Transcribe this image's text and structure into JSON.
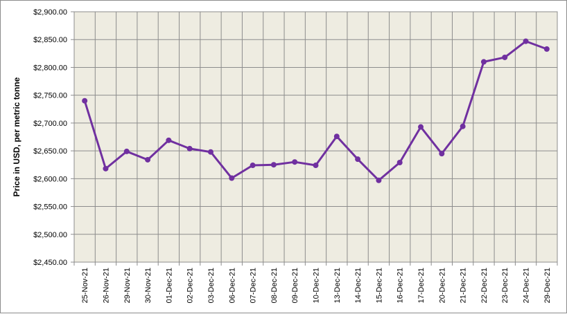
{
  "chart_data": {
    "type": "line",
    "title": "",
    "xlabel": "",
    "ylabel": "Price in USD, per metric tonne",
    "ylim": [
      2450,
      2900
    ],
    "y_tick_step": 50,
    "y_tick_labels": [
      "$2,450.00",
      "$2,500.00",
      "$2,550.00",
      "$2,600.00",
      "$2,650.00",
      "$2,700.00",
      "$2,750.00",
      "$2,800.00",
      "$2,850.00",
      "$2,900.00"
    ],
    "grid": true,
    "legend": "none",
    "categories": [
      "25-Nov-21",
      "26-Nov-21",
      "29-Nov-21",
      "30-Nov-21",
      "01-Dec-21",
      "02-Dec-21",
      "03-Dec-21",
      "06-Dec-21",
      "07-Dec-21",
      "08-Dec-21",
      "09-Dec-21",
      "10-Dec-21",
      "13-Dec-21",
      "14-Dec-21",
      "15-Dec-21",
      "16-Dec-21",
      "17-Dec-21",
      "20-Dec-21",
      "21-Dec-21",
      "22-Dec-21",
      "23-Dec-21",
      "24-Dec-21",
      "29-Dec-21"
    ],
    "series": [
      {
        "values": [
          2740,
          2618,
          2649,
          2634,
          2669,
          2654,
          2648,
          2601,
          2624,
          2625,
          2630,
          2624,
          2676,
          2635,
          2597,
          2629,
          2693,
          2645,
          2694,
          2810,
          2818,
          2847,
          2833
        ]
      }
    ],
    "colors": {
      "line": "#7030a0",
      "plot_background": "#eeece1",
      "grid": "#8c8c8c"
    }
  }
}
